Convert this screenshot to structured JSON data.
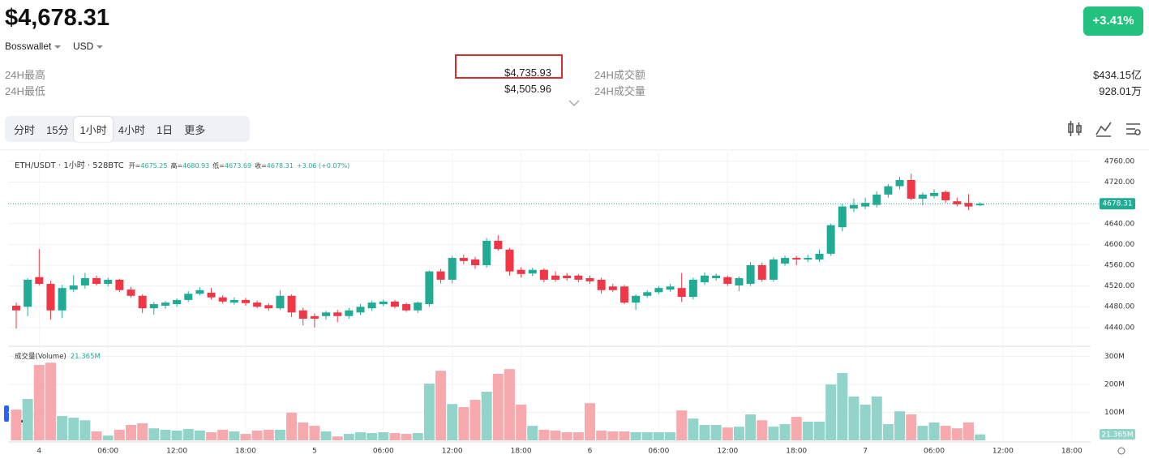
{
  "header": {
    "price": "$4,678.31",
    "change": "+3.41%",
    "wallet": "Bosswallet",
    "currency": "USD"
  },
  "stats": [
    {
      "label": "24H最高",
      "value": "$4,735.93"
    },
    {
      "label": "24H最低",
      "value": "$4,505.96"
    },
    {
      "label": "24H成交额",
      "value": "$434.15亿"
    },
    {
      "label": "24H成交量",
      "value": "928.01万"
    }
  ],
  "timeframes": [
    "分时",
    "15分",
    "1小时",
    "4小时",
    "1日",
    "更多"
  ],
  "active_timeframe": 2,
  "chart_data": {
    "type": "candlestick",
    "legend": "ETH/USDT · 1小时 · 528BTC",
    "ohlc_labels": [
      "开=",
      "高=",
      "低=",
      "收="
    ],
    "change_text": "+3.06 (+0.07%)",
    "volume_title": "成交量(Volume)",
    "volume_value_label": "21.365M",
    "categories": [
      null,
      null,
      "4",
      null,
      null,
      null,
      null,
      null,
      "06:00",
      null,
      null,
      null,
      null,
      null,
      "12:00",
      null,
      null,
      null,
      null,
      null,
      "18:00",
      null,
      null,
      null,
      null,
      null,
      "5",
      null,
      null,
      null,
      null,
      null,
      "06:00",
      null,
      null,
      null,
      null,
      null,
      "12:00",
      null,
      null,
      null,
      null,
      null,
      "18:00",
      null,
      null,
      null,
      null,
      null,
      "6",
      null,
      null,
      null,
      null,
      null,
      "06:00",
      null,
      null,
      null,
      null,
      null,
      "12:00",
      null,
      null,
      null,
      null,
      null,
      "18:00",
      null,
      null,
      null,
      null,
      null,
      "7",
      null,
      null,
      null,
      null,
      null,
      "06:00",
      null,
      null,
      null,
      null,
      null,
      "12:00",
      null,
      null,
      null,
      null,
      null,
      "18:00"
    ],
    "open": [
      4482,
      4480,
      4537,
      4524,
      4473,
      4513,
      4521,
      4535,
      4524,
      4532,
      4513,
      4501,
      4477,
      4482,
      4485,
      4493,
      4505,
      4507,
      4498,
      4488,
      4493,
      4488,
      4483,
      4477,
      4501,
      4473,
      4462,
      4462,
      4469,
      4462,
      4469,
      4477,
      4485,
      4490,
      4485,
      4473,
      4485,
      4548,
      4532,
      4574,
      4571,
      4560,
      4607,
      4590,
      4551,
      4544,
      4551,
      4540,
      4540,
      4540,
      4535,
      4532,
      4519,
      4519,
      4488,
      4501,
      4508,
      4513,
      4516,
      4499,
      4527,
      4535,
      4537,
      4521,
      4524,
      4560,
      4532,
      4563,
      4574,
      4571,
      4571,
      4582,
      4633,
      4669,
      4673,
      4676,
      4696,
      4712,
      4724,
      4688,
      4693,
      4701,
      4683,
      4680,
      4675.25,
      null,
      null,
      null,
      null,
      null,
      null,
      null,
      null
    ],
    "high": [
      4488,
      4535,
      4591,
      4530,
      4522,
      4541,
      4545,
      4540,
      4536,
      4534,
      4518,
      4504,
      4489,
      4491,
      4496,
      4510,
      4518,
      4516,
      4502,
      4498,
      4497,
      4492,
      4487,
      4512,
      4504,
      4478,
      4467,
      4472,
      4474,
      4478,
      4485,
      4492,
      4494,
      4493,
      4488,
      4490,
      4550,
      4553,
      4578,
      4580,
      4576,
      4612,
      4618,
      4593,
      4556,
      4555,
      4554,
      4548,
      4545,
      4543,
      4540,
      4536,
      4524,
      4522,
      4504,
      4512,
      4520,
      4524,
      4545,
      4536,
      4546,
      4544,
      4540,
      4538,
      4566,
      4565,
      4575,
      4578,
      4578,
      4580,
      4590,
      4640,
      4678,
      4688,
      4690,
      4702,
      4716,
      4730,
      4736,
      4700,
      4706,
      4704,
      4690,
      4697,
      4680.93,
      null,
      null,
      null,
      null,
      null,
      null,
      null,
      null
    ],
    "low": [
      4438,
      4462,
      4521,
      4455,
      4458,
      4508,
      4515,
      4521,
      4519,
      4508,
      4497,
      4468,
      4465,
      4476,
      4480,
      4489,
      4502,
      4494,
      4486,
      4484,
      4482,
      4477,
      4472,
      4474,
      4460,
      4444,
      4440,
      4455,
      4450,
      4457,
      4464,
      4472,
      4481,
      4477,
      4470,
      4468,
      4480,
      4525,
      4525,
      4562,
      4553,
      4555,
      4588,
      4540,
      4536,
      4539,
      4527,
      4528,
      4530,
      4527,
      4524,
      4505,
      4508,
      4485,
      4474,
      4497,
      4504,
      4509,
      4489,
      4494,
      4522,
      4530,
      4520,
      4510,
      4520,
      4528,
      4528,
      4559,
      4560,
      4566,
      4566,
      4578,
      4625,
      4662,
      4668,
      4671,
      4690,
      4706,
      4685,
      4675,
      4689,
      4680,
      4673,
      4666,
      4673.69,
      null,
      null,
      null,
      null,
      null,
      null,
      null,
      null
    ],
    "close": [
      4473,
      4532,
      4524,
      4473,
      4516,
      4521,
      4535,
      4524,
      4532,
      4512,
      4501,
      4477,
      4485,
      4488,
      4493,
      4505,
      4512,
      4498,
      4490,
      4493,
      4487,
      4480,
      4477,
      4501,
      4469,
      4457,
      4457,
      4469,
      4462,
      4473,
      4480,
      4488,
      4490,
      4480,
      4473,
      4488,
      4548,
      4532,
      4574,
      4568,
      4560,
      4607,
      4591,
      4548,
      4543,
      4551,
      4532,
      4532,
      4535,
      4532,
      4529,
      4512,
      4512,
      4488,
      4501,
      4508,
      4516,
      4519,
      4499,
      4532,
      4540,
      4540,
      4524,
      4535,
      4560,
      4532,
      4571,
      4574,
      4571,
      4574,
      4582,
      4637,
      4673,
      4676,
      4680,
      4696,
      4712,
      4724,
      4688,
      4696,
      4699,
      4685,
      4677,
      4673,
      4678.31,
      null,
      null,
      null,
      null,
      null,
      null,
      null,
      null
    ],
    "volume": [
      110,
      148,
      270,
      278,
      87,
      81,
      72,
      32,
      17,
      38,
      55,
      61,
      43,
      38,
      35,
      41,
      35,
      29,
      38,
      32,
      23,
      35,
      38,
      38,
      99,
      64,
      52,
      32,
      14,
      23,
      29,
      26,
      29,
      26,
      23,
      26,
      203,
      249,
      130,
      119,
      145,
      174,
      238,
      255,
      128,
      52,
      38,
      35,
      29,
      29,
      133,
      35,
      32,
      32,
      29,
      29,
      29,
      29,
      107,
      78,
      55,
      55,
      46,
      49,
      93,
      72,
      49,
      58,
      84,
      67,
      67,
      200,
      241,
      157,
      128,
      157,
      58,
      104,
      93,
      52,
      64,
      52,
      43,
      64,
      21.365,
      null,
      null,
      null,
      null,
      null,
      null,
      null,
      null
    ],
    "ylim": [
      4407,
      4777
    ],
    "yticks": [
      {
        "value": 4440,
        "label": "4440.00"
      },
      {
        "value": 4480,
        "label": "4480.00"
      },
      {
        "value": 4520,
        "label": "4520.00"
      },
      {
        "value": 4560,
        "label": "4560.00"
      },
      {
        "value": 4600,
        "label": "4600.00"
      },
      {
        "value": 4640,
        "label": "4640.00"
      },
      {
        "value": 4720,
        "label": "4720.00"
      },
      {
        "value": 4760,
        "label": "4760.00"
      }
    ],
    "vlim": [
      0,
      328
    ],
    "vticks": [
      {
        "value": 100,
        "label": "100M"
      },
      {
        "value": 200,
        "label": "200M"
      },
      {
        "value": 300,
        "label": "300M"
      }
    ],
    "grid": true,
    "last_price_line": true,
    "up_color": "#22ab94",
    "down_color": "#f23645",
    "up_volume_color": "#93d4ca",
    "down_volume_color": "#f7a9ad"
  }
}
